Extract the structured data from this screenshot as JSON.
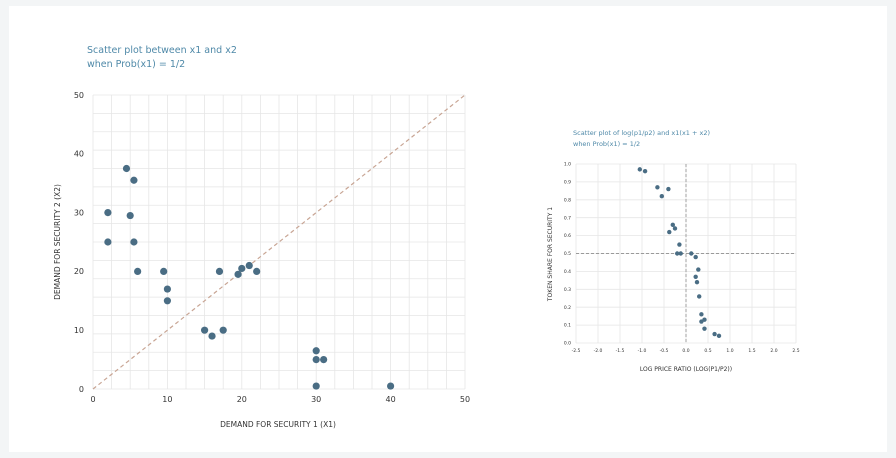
{
  "chart_data": [
    {
      "type": "scatter",
      "title_lines": [
        "Scatter plot between x1 and x2",
        "when Prob(x1) = 1/2"
      ],
      "xlabel": "DEMAND FOR SECURITY 1 (X1)",
      "ylabel": "DEMAND FOR SECURITY 2 (X2)",
      "xlim": [
        0,
        50
      ],
      "ylim": [
        0,
        50
      ],
      "xticks": [
        0,
        10,
        20,
        30,
        40,
        50
      ],
      "yticks": [
        0,
        10,
        20,
        30,
        40,
        50
      ],
      "grid": true,
      "reference_line": "diagonal y = x (dashed)",
      "point_color": "#4a6d84",
      "line_color": "#c8a594",
      "points": [
        [
          4.5,
          37.5
        ],
        [
          2,
          30
        ],
        [
          5,
          29.5
        ],
        [
          5.5,
          35.5
        ],
        [
          2,
          25
        ],
        [
          5.5,
          25
        ],
        [
          6,
          20
        ],
        [
          9.5,
          20
        ],
        [
          10,
          17
        ],
        [
          10,
          15
        ],
        [
          17,
          20
        ],
        [
          19.5,
          19.5
        ],
        [
          20,
          20.5
        ],
        [
          21,
          21
        ],
        [
          22,
          20
        ],
        [
          15,
          10
        ],
        [
          16,
          9
        ],
        [
          17.5,
          10
        ],
        [
          30,
          6.5
        ],
        [
          30,
          5
        ],
        [
          31,
          5
        ],
        [
          30,
          0.5
        ],
        [
          40,
          0.5
        ]
      ]
    },
    {
      "type": "scatter",
      "title_lines": [
        "Scatter plot of log(p1/p2) and x1(x1 + x2)",
        "when Prob(x1) = 1/2"
      ],
      "xlabel": "LOG PRICE RATIO (LOG(P1/P2))",
      "ylabel": "TOKEN SHARE FOR SECURITY 1",
      "xlim": [
        -2.5,
        2.5
      ],
      "ylim": [
        0,
        1
      ],
      "xticks": [
        "-2.5",
        "-2.0",
        "-1.5",
        "-1.0",
        "-0.5",
        "0.0",
        "0.5",
        "1.0",
        "1.5",
        "2.0",
        "2.5"
      ],
      "yticks": [
        "0.0",
        "0.1",
        "0.2",
        "0.3",
        "0.4",
        "0.5",
        "0.6",
        "0.7",
        "0.8",
        "0.9",
        "1.0"
      ],
      "grid": true,
      "reference_lines": [
        "vertical dashed at x = 0",
        "horizontal dashed at y = 0.5"
      ],
      "point_color": "#4a6d84",
      "line_color": "#9a9a9a",
      "points": [
        [
          -1.05,
          0.97
        ],
        [
          -0.93,
          0.96
        ],
        [
          -0.65,
          0.87
        ],
        [
          -0.55,
          0.82
        ],
        [
          -0.4,
          0.86
        ],
        [
          -0.3,
          0.66
        ],
        [
          -0.25,
          0.64
        ],
        [
          -0.38,
          0.62
        ],
        [
          -0.15,
          0.55
        ],
        [
          -0.2,
          0.5
        ],
        [
          -0.12,
          0.5
        ],
        [
          0.12,
          0.5
        ],
        [
          0.22,
          0.48
        ],
        [
          0.28,
          0.41
        ],
        [
          0.22,
          0.37
        ],
        [
          0.25,
          0.34
        ],
        [
          0.3,
          0.26
        ],
        [
          0.35,
          0.16
        ],
        [
          0.42,
          0.13
        ],
        [
          0.35,
          0.12
        ],
        [
          0.42,
          0.08
        ],
        [
          0.65,
          0.05
        ],
        [
          0.75,
          0.04
        ]
      ]
    }
  ]
}
